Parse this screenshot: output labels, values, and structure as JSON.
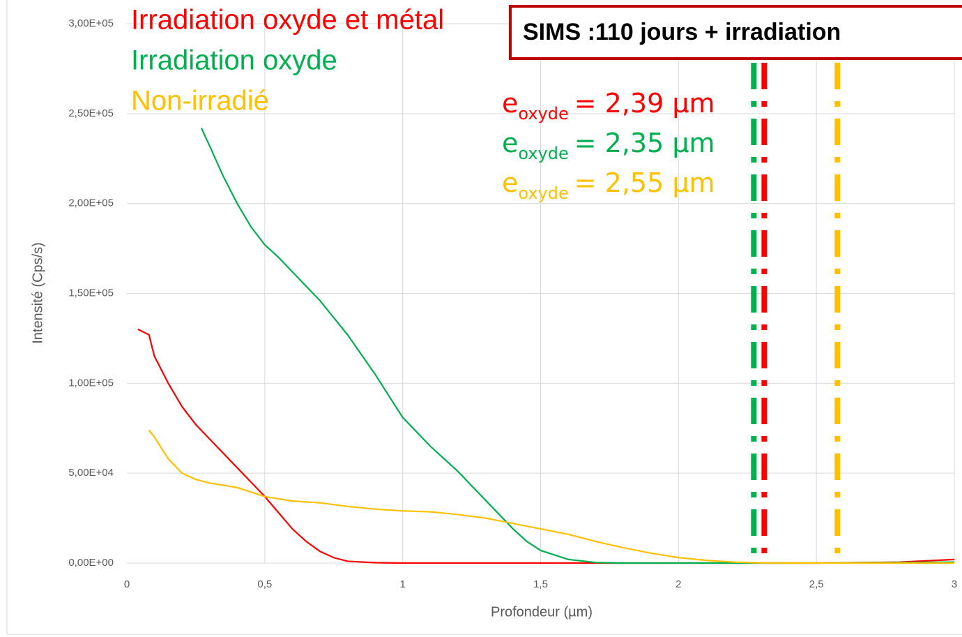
{
  "chart_data": {
    "type": "line",
    "title": "SIMS :110 jours + irradiation",
    "xlabel": "Profondeur (µm)",
    "ylabel": "Intensité (Cps/s)",
    "xlim": [
      0,
      3
    ],
    "ylim": [
      0,
      300000
    ],
    "xticks": [
      0,
      {
        "value": 0.5,
        "label": "0,5"
      },
      1,
      {
        "value": 1.5,
        "label": "1,5"
      },
      2,
      {
        "value": 2.5,
        "label": "2,5"
      },
      3
    ],
    "yticks": [
      {
        "value": 0,
        "label": "0,00E+00"
      },
      {
        "value": 50000,
        "label": "5,00E+04"
      },
      {
        "value": 100000,
        "label": "1,00E+05"
      },
      {
        "value": 150000,
        "label": "1,50E+05"
      },
      {
        "value": 200000,
        "label": "2,00E+05"
      },
      {
        "value": 250000,
        "label": "2,50E+05"
      },
      {
        "value": 300000,
        "label": "3,00E+05"
      }
    ],
    "grid": true,
    "series": [
      {
        "name": "Irradiation oxyde et métal",
        "color": "#ff0000",
        "x": [
          0.04,
          0.08,
          0.1,
          0.15,
          0.2,
          0.25,
          0.3,
          0.35,
          0.4,
          0.45,
          0.5,
          0.55,
          0.6,
          0.65,
          0.7,
          0.75,
          0.8,
          0.9,
          1,
          1.5,
          2,
          2.5,
          2.8,
          3
        ],
        "values": [
          130000,
          127000,
          115000,
          100000,
          87000,
          77000,
          69000,
          61000,
          53000,
          45000,
          37000,
          28000,
          19000,
          12000,
          6500,
          3000,
          1000,
          200,
          0,
          0,
          0,
          0,
          500,
          2000
        ]
      },
      {
        "name": "Irradiation oxyde",
        "color": "#00b050",
        "x": [
          0.27,
          0.3,
          0.35,
          0.4,
          0.45,
          0.5,
          0.55,
          0.6,
          0.7,
          0.8,
          0.9,
          1,
          1.1,
          1.2,
          1.25,
          1.3,
          1.35,
          1.4,
          1.45,
          1.5,
          1.6,
          1.7,
          1.8,
          2.5,
          3
        ],
        "values": [
          242000,
          232000,
          215000,
          200000,
          187000,
          177000,
          170000,
          162000,
          146000,
          127000,
          105000,
          81000,
          65000,
          51000,
          43000,
          35000,
          27000,
          19000,
          12000,
          7000,
          2000,
          300,
          0,
          0,
          500
        ]
      },
      {
        "name": "Non-irradié",
        "color": "#ffc000",
        "x": [
          0.08,
          0.1,
          0.15,
          0.2,
          0.25,
          0.3,
          0.4,
          0.5,
          0.6,
          0.7,
          0.8,
          0.9,
          1,
          1.1,
          1.2,
          1.3,
          1.4,
          1.5,
          1.6,
          1.7,
          1.8,
          1.9,
          2,
          2.1,
          2.2,
          2.3,
          2.5,
          3
        ],
        "values": [
          74000,
          70000,
          58000,
          50000,
          46500,
          44500,
          42000,
          37000,
          34500,
          33500,
          31500,
          30000,
          29000,
          28500,
          27000,
          25000,
          22000,
          19000,
          16000,
          12000,
          8500,
          5500,
          3000,
          1500,
          500,
          100,
          0,
          0
        ]
      }
    ],
    "vlines": [
      {
        "x": 2.273,
        "color": "#00b050"
      },
      {
        "x": 2.311,
        "color": "#ff0000"
      },
      {
        "x": 2.576,
        "color": "#ffc000"
      }
    ],
    "annotations": [
      {
        "symbol": "e",
        "subscript": "oxyde",
        "text": "= 2,39 µm",
        "color": "#ff0000"
      },
      {
        "symbol": "e",
        "subscript": "oxyde",
        "text": "= 2,35 µm",
        "color": "#00b050"
      },
      {
        "symbol": "e",
        "subscript": "oxyde",
        "text": "= 2,55 µm",
        "color": "#ffc000"
      }
    ]
  }
}
